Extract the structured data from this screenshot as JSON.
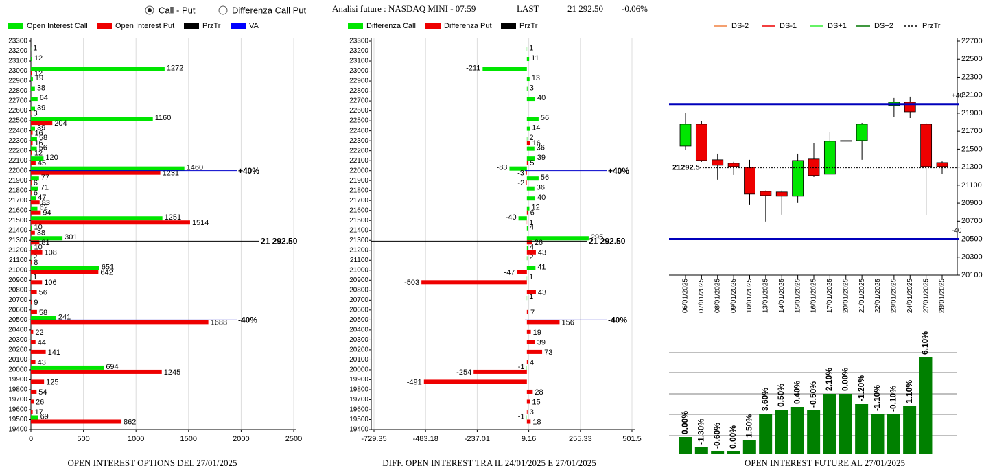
{
  "header": {
    "options": [
      "Call - Put",
      "Differenza Call Put"
    ],
    "title": "Analisi future : NASDAQ MINI - 07:59",
    "last_label": "LAST",
    "last": "21 292.50",
    "change": "-0.06%"
  },
  "chart_data": [
    {
      "type": "hbar",
      "title": "OPEN INTEREST OPTIONS DEL 27/01/2025",
      "categories": [
        23300,
        23200,
        23100,
        23000,
        22900,
        22800,
        22700,
        22600,
        22500,
        22400,
        22300,
        22200,
        22100,
        22000,
        21900,
        21800,
        21700,
        21600,
        21500,
        21400,
        21300,
        21200,
        21100,
        21000,
        20900,
        20800,
        20700,
        20600,
        20500,
        20400,
        20300,
        20200,
        20100,
        20000,
        19900,
        19800,
        19700,
        19600,
        19500,
        19400
      ],
      "series": [
        {
          "name": "Open Interest Call",
          "color": "#00e600",
          "values": [
            null,
            1,
            12,
            1272,
            19,
            38,
            64,
            39,
            1160,
            39,
            58,
            56,
            120,
            1460,
            77,
            71,
            47,
            62,
            1251,
            10,
            301,
            10,
            2,
            651,
            1,
            null,
            null,
            null,
            241,
            null,
            null,
            null,
            null,
            694,
            null,
            null,
            null,
            null,
            69,
            null
          ]
        },
        {
          "name": "Open Interest Put",
          "color": "#ee0000",
          "values": [
            null,
            null,
            null,
            12,
            null,
            null,
            null,
            3,
            204,
            16,
            16,
            12,
            45,
            1231,
            6,
            6,
            83,
            94,
            1514,
            38,
            81,
            108,
            8,
            642,
            106,
            56,
            9,
            58,
            1688,
            22,
            44,
            141,
            43,
            1245,
            125,
            54,
            26,
            17,
            862,
            null
          ]
        }
      ],
      "legend_extra": [
        {
          "name": "PrzTr",
          "color": "#000000"
        },
        {
          "name": "VA",
          "color": "#0000ff"
        }
      ],
      "markers": [
        {
          "at": 22000,
          "label": "+40%",
          "color": "#0000cc"
        },
        {
          "at": 20500,
          "label": "-40%",
          "color": "#0000cc"
        },
        {
          "at": 21292.5,
          "label": "21 292.50",
          "color": "#000000"
        }
      ],
      "xlim": [
        0,
        2500
      ],
      "xticks": [
        0,
        500,
        1000,
        1500,
        2000,
        2500
      ],
      "grid": true
    },
    {
      "type": "hbar",
      "title": "DIFF. OPEN INTEREST TRA IL 24/01/2025 E 27/01/2025",
      "categories": [
        23300,
        23200,
        23100,
        23000,
        22900,
        22800,
        22700,
        22600,
        22500,
        22400,
        22300,
        22200,
        22100,
        22000,
        21900,
        21800,
        21700,
        21600,
        21500,
        21400,
        21300,
        21200,
        21100,
        21000,
        20900,
        20800,
        20700,
        20600,
        20500,
        20400,
        20300,
        20200,
        20100,
        20000,
        19900,
        19800,
        19700,
        19600,
        19500,
        19400
      ],
      "series": [
        {
          "name": "Differenza Call",
          "color": "#00e600",
          "values": [
            null,
            1,
            11,
            -211,
            13,
            3,
            40,
            null,
            56,
            14,
            2,
            36,
            39,
            -83,
            56,
            36,
            40,
            12,
            -40,
            4,
            295,
            4,
            2,
            41,
            1,
            null,
            1,
            null,
            null,
            null,
            null,
            null,
            null,
            -1,
            null,
            null,
            null,
            null,
            -1,
            null
          ]
        },
        {
          "name": "Differenza Put",
          "color": "#ee0000",
          "values": [
            null,
            null,
            null,
            null,
            null,
            null,
            null,
            null,
            null,
            null,
            16,
            null,
            5,
            -3,
            -2,
            null,
            null,
            6,
            1,
            null,
            26,
            43,
            null,
            -47,
            -503,
            43,
            null,
            7,
            156,
            19,
            39,
            73,
            4,
            -254,
            -491,
            28,
            15,
            3,
            18,
            null
          ]
        }
      ],
      "legend_extra": [
        {
          "name": "PrzTr",
          "color": "#000000"
        }
      ],
      "markers": [
        {
          "at": 22000,
          "label": "+40%",
          "color": "#0000cc"
        },
        {
          "at": 20500,
          "label": "-40%",
          "color": "#0000cc"
        },
        {
          "at": 21292.5,
          "label": "21 292.50",
          "color": "#000000"
        }
      ],
      "xlim": [
        -729.35,
        501.5
      ],
      "xticks": [
        -729.35,
        -483.18,
        -237.01,
        9.16,
        255.33,
        501.5
      ],
      "grid": true
    },
    {
      "type": "candlestick",
      "x": [
        "06/01/2025",
        "07/01/2025",
        "08/01/2025",
        "09/01/2025",
        "10/01/2025",
        "13/01/2025",
        "14/01/2025",
        "15/01/2025",
        "16/01/2025",
        "17/01/2025",
        "20/01/2025",
        "21/01/2025",
        "22/01/2025",
        "23/01/2025",
        "24/01/2025",
        "27/01/2025",
        "28/01/2025"
      ],
      "open": [
        21534,
        21778,
        21382,
        21344,
        21298,
        21031,
        21024,
        20978,
        21390,
        21222,
        21595,
        21595,
        null,
        21984,
        22022,
        21778,
        21351
      ],
      "high": [
        21900,
        21808,
        21450,
        21360,
        21382,
        21040,
        21040,
        21450,
        21572,
        21687,
        21595,
        21793,
        null,
        22068,
        22083,
        21790,
        21365
      ],
      "low": [
        21488,
        21359,
        21161,
        21214,
        20879,
        20696,
        20772,
        20902,
        21190,
        21222,
        21595,
        21382,
        null,
        21854,
        21846,
        20765,
        21222
      ],
      "close": [
        21778,
        21374,
        21321,
        21306,
        21001,
        20985,
        20978,
        21374,
        21207,
        21588,
        21595,
        21778,
        null,
        22022,
        21915,
        21306,
        21306
      ],
      "up_color": "#00e600",
      "down_color": "#ee0000",
      "legend": [
        {
          "name": "DS-2",
          "color": "#f08040"
        },
        {
          "name": "DS-1",
          "color": "#ee0000"
        },
        {
          "name": "DS+1",
          "color": "#33ee33"
        },
        {
          "name": "DS+2",
          "color": "#007700"
        },
        {
          "name": "PrzTr",
          "color": "#000000",
          "dash": true
        }
      ],
      "levels": [
        {
          "value": 22000,
          "label": "+40",
          "color": "#0000bb"
        },
        {
          "value": 20500,
          "label": "-40",
          "color": "#0000bb"
        }
      ],
      "last": {
        "value": 21292.5,
        "label": "21292.5"
      },
      "ylim": [
        20100,
        22700
      ],
      "yticks": [
        20100,
        20300,
        20500,
        20700,
        20900,
        21100,
        21300,
        21500,
        21700,
        21900,
        22100,
        22300,
        22500,
        22700
      ]
    },
    {
      "type": "bar",
      "title": "OPEN INTEREST FUTURE AL 27/01/2025",
      "values": [
        24,
        9,
        3,
        3,
        19,
        58,
        64,
        68,
        63,
        87,
        87,
        72,
        58,
        57,
        69,
        140
      ],
      "change_labels": [
        "0.00%",
        "-1.30%",
        "-0.60%",
        "0.00%",
        "1.50%",
        "3.60%",
        "0.50%",
        "0.40%",
        "-0.50%",
        "2.10%",
        "0.00%",
        "-1.20%",
        "-1.10%",
        "-0.10%",
        "1.10%",
        "6.10%"
      ],
      "color": "#008000",
      "ylim": [
        0,
        150
      ],
      "grid": true
    }
  ]
}
